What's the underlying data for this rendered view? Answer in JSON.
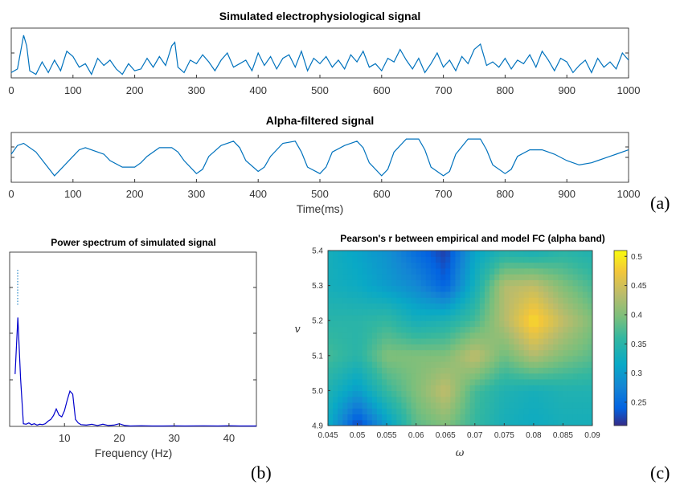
{
  "chart_data": [
    {
      "type": "line",
      "title": "Simulated electrophysiological signal",
      "xlim": [
        0,
        1000
      ],
      "xticks": [
        "0",
        "100",
        "200",
        "300",
        "400",
        "500",
        "600",
        "700",
        "800",
        "900",
        "1000"
      ],
      "xlabel": "",
      "ylabel": "",
      "y_tick_labels": "none",
      "color": "#0072bd",
      "series": [
        {
          "x": [
            0,
            10,
            20,
            25,
            30,
            40,
            50,
            60,
            70,
            80,
            90,
            100,
            110,
            120,
            130,
            140,
            150,
            160,
            170,
            180,
            190,
            200,
            210,
            220,
            230,
            240,
            250,
            260,
            265,
            270,
            280,
            290,
            300,
            310,
            320,
            330,
            340,
            350,
            360,
            370,
            380,
            390,
            400,
            410,
            420,
            430,
            440,
            450,
            460,
            470,
            480,
            490,
            500,
            510,
            520,
            530,
            540,
            550,
            560,
            570,
            580,
            590,
            600,
            610,
            620,
            630,
            640,
            650,
            660,
            670,
            680,
            690,
            700,
            710,
            720,
            730,
            740,
            750,
            760,
            770,
            780,
            790,
            800,
            810,
            820,
            830,
            840,
            850,
            860,
            870,
            880,
            890,
            900,
            910,
            920,
            930,
            940,
            950,
            960,
            970,
            980,
            990,
            1000
          ],
          "y": [
            0.3,
            0.5,
            2.4,
            1.8,
            0.4,
            0.2,
            0.9,
            0.3,
            1.0,
            0.4,
            1.5,
            1.2,
            0.6,
            0.8,
            0.2,
            1.1,
            0.7,
            1.0,
            0.5,
            0.2,
            0.8,
            0.4,
            0.5,
            1.1,
            0.6,
            1.2,
            0.7,
            1.8,
            2.0,
            0.6,
            0.3,
            1.0,
            0.8,
            1.3,
            0.9,
            0.4,
            1.0,
            1.4,
            0.6,
            0.8,
            1.0,
            0.4,
            1.4,
            0.7,
            1.2,
            0.5,
            1.1,
            1.3,
            0.6,
            1.5,
            0.4,
            1.1,
            0.8,
            1.2,
            0.6,
            1.0,
            0.5,
            1.3,
            0.9,
            1.5,
            0.6,
            0.8,
            0.4,
            1.1,
            0.9,
            1.6,
            1.0,
            0.5,
            1.1,
            0.3,
            0.8,
            1.4,
            0.6,
            1.0,
            0.4,
            1.2,
            0.8,
            1.6,
            1.9,
            0.7,
            0.9,
            0.6,
            1.1,
            0.5,
            1.0,
            0.8,
            1.3,
            0.6,
            1.5,
            1.0,
            0.4,
            1.1,
            0.9,
            0.3,
            0.7,
            1.0,
            0.3,
            1.1,
            0.6,
            0.9,
            0.5,
            1.4,
            1.0
          ]
        }
      ]
    },
    {
      "type": "line",
      "title": "Alpha-filtered signal",
      "xlim": [
        0,
        1000
      ],
      "xticks": [
        "0",
        "100",
        "200",
        "300",
        "400",
        "500",
        "600",
        "700",
        "800",
        "900",
        "1000"
      ],
      "xlabel": "Time(ms)",
      "ylabel": "",
      "y_tick_labels": "none",
      "color": "#0072bd",
      "series": [
        {
          "x": [
            0,
            10,
            20,
            40,
            70,
            100,
            110,
            120,
            150,
            160,
            180,
            200,
            210,
            220,
            240,
            260,
            270,
            280,
            300,
            310,
            320,
            340,
            360,
            370,
            380,
            400,
            410,
            420,
            440,
            460,
            470,
            480,
            500,
            510,
            520,
            540,
            560,
            570,
            580,
            600,
            610,
            620,
            640,
            660,
            670,
            680,
            700,
            710,
            720,
            740,
            760,
            770,
            780,
            800,
            810,
            820,
            840,
            860,
            870,
            880,
            900,
            920,
            940,
            950,
            960,
            980,
            1000
          ],
          "y": [
            0.2,
            0.6,
            0.7,
            0.3,
            -0.8,
            0.1,
            0.4,
            0.5,
            0.2,
            -0.1,
            -0.4,
            -0.4,
            -0.2,
            0.1,
            0.5,
            0.5,
            0.3,
            -0.1,
            -0.7,
            -0.5,
            0.1,
            0.6,
            0.8,
            0.5,
            -0.1,
            -0.6,
            -0.4,
            0.1,
            0.7,
            0.8,
            0.3,
            -0.4,
            -0.7,
            -0.4,
            0.3,
            0.6,
            0.8,
            0.5,
            -0.2,
            -0.8,
            -0.5,
            0.3,
            0.9,
            0.9,
            0.4,
            -0.4,
            -0.8,
            -0.6,
            0.2,
            0.9,
            0.9,
            0.4,
            -0.3,
            -0.7,
            -0.5,
            0.1,
            0.4,
            0.4,
            0.3,
            0.2,
            -0.1,
            -0.3,
            -0.2,
            -0.1,
            0.0,
            0.2,
            0.4
          ]
        }
      ]
    },
    {
      "type": "line",
      "title": "Power spectrum of simulated signal",
      "xlabel": "Frequency (Hz)",
      "xlim": [
        0,
        45
      ],
      "xticks": [
        "10",
        "20",
        "30",
        "40"
      ],
      "ylabel": "",
      "y_tick_labels": "none",
      "color": "#0000cd",
      "series": [
        {
          "x": [
            1,
            1.5,
            2,
            2.5,
            3,
            3.5,
            4,
            4.5,
            5,
            5.5,
            6,
            6.5,
            7,
            7.5,
            8,
            8.5,
            9,
            9.5,
            10,
            10.5,
            11,
            11.5,
            12,
            12.5,
            13,
            14,
            15,
            16,
            17,
            18,
            19,
            20,
            21,
            22,
            24,
            26,
            28,
            30,
            32,
            35,
            38,
            40,
            42,
            45
          ],
          "y": [
            12,
            25,
            11,
            0.6,
            0.5,
            0.8,
            0.4,
            0.6,
            0.3,
            0.5,
            0.4,
            0.6,
            1.2,
            1.6,
            2.5,
            4.0,
            2.6,
            2.2,
            3.6,
            6.0,
            8.1,
            7.4,
            1.6,
            0.8,
            0.4,
            0.3,
            0.5,
            0.2,
            0.5,
            0.2,
            0.3,
            0.6,
            0.2,
            0.1,
            0.15,
            0.1,
            0.1,
            0.12,
            0.1,
            0.12,
            0.1,
            0.14,
            0.1,
            0.1
          ]
        }
      ]
    },
    {
      "type": "heatmap",
      "title": "Pearson's r between empirical and model FC (alpha band)",
      "xlabel": "ω",
      "ylabel": "v",
      "x": [
        0.045,
        0.05,
        0.055,
        0.06,
        0.065,
        0.07,
        0.075,
        0.08,
        0.085,
        0.09
      ],
      "y": [
        4.9,
        5.0,
        5.1,
        5.2,
        5.3,
        5.4
      ],
      "xticks": [
        "0.045",
        "0.05",
        "0.055",
        "0.06",
        "0.065",
        "0.07",
        "0.075",
        "0.08",
        "0.085",
        "0.09"
      ],
      "yticks": [
        "4.9",
        "5.0",
        "5.1",
        "5.2",
        "5.3",
        "5.4"
      ],
      "colorbar_ticks": [
        "0.25",
        "0.3",
        "0.35",
        "0.4",
        "0.45",
        "0.5"
      ],
      "clim": [
        0.21,
        0.51
      ],
      "colormap": "parula",
      "z": [
        [
          0.32,
          0.22,
          0.3,
          0.38,
          0.4,
          0.36,
          0.33,
          0.32,
          0.33,
          0.33
        ],
        [
          0.34,
          0.3,
          0.36,
          0.4,
          0.44,
          0.37,
          0.34,
          0.33,
          0.34,
          0.34
        ],
        [
          0.37,
          0.35,
          0.4,
          0.4,
          0.4,
          0.44,
          0.39,
          0.43,
          0.4,
          0.38
        ],
        [
          0.35,
          0.35,
          0.36,
          0.33,
          0.34,
          0.37,
          0.43,
          0.49,
          0.44,
          0.4
        ],
        [
          0.33,
          0.32,
          0.3,
          0.28,
          0.24,
          0.33,
          0.43,
          0.44,
          0.4,
          0.37
        ],
        [
          0.33,
          0.31,
          0.29,
          0.25,
          0.22,
          0.31,
          0.34,
          0.33,
          0.35,
          0.34
        ]
      ]
    }
  ],
  "panel_labels": [
    "(a)",
    "(b)",
    "(c)"
  ]
}
